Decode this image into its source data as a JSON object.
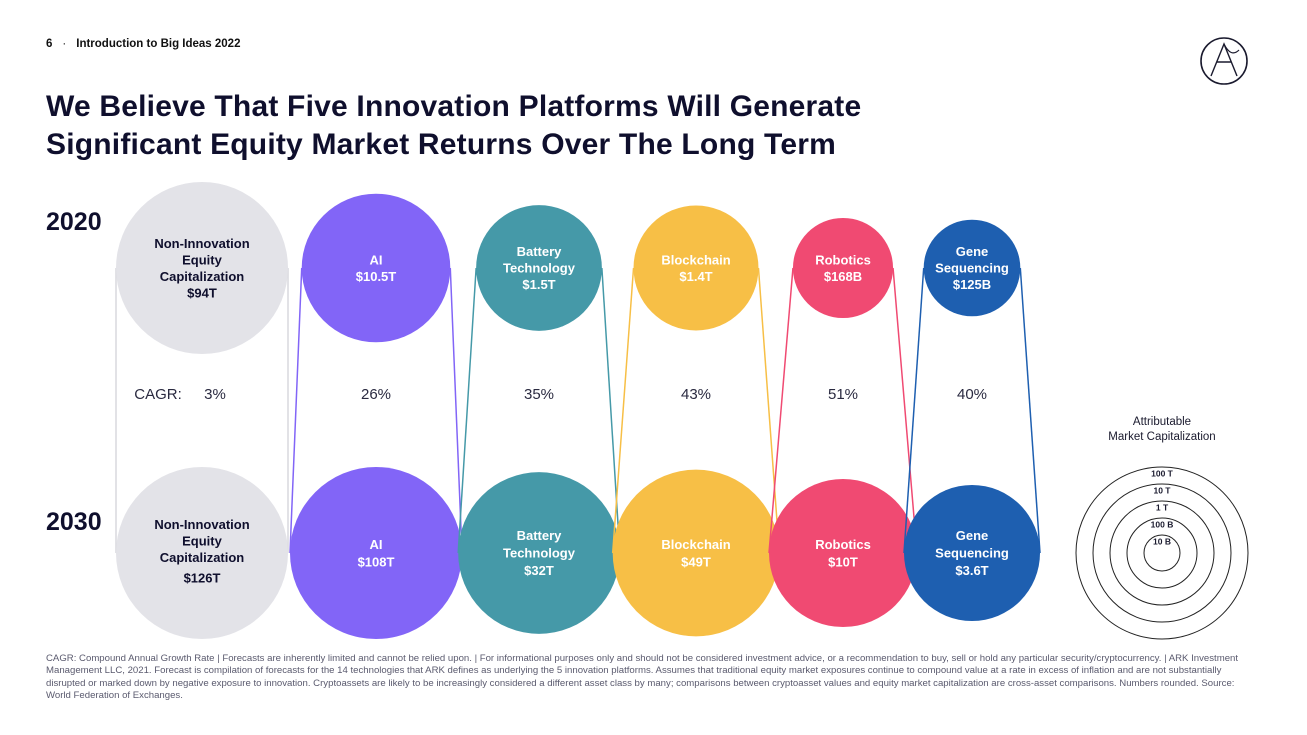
{
  "header": {
    "page_number": "6",
    "separator": "·",
    "section": "Introduction to Big Ideas 2022"
  },
  "title": {
    "line1": "We Believe That Five Innovation Platforms Will Generate",
    "line2": "Significant Equity Market Returns Over The Long Term"
  },
  "chart_data": {
    "type": "bubble-comparison",
    "title": "We Believe That Five Innovation Platforms Will Generate Significant Equity Market Returns Over The Long Term",
    "years": [
      "2020",
      "2030"
    ],
    "cagr_label": "CAGR:",
    "series": [
      {
        "name": "Non-Innovation Equity Capitalization",
        "label_lines": [
          "Non-Innovation",
          "Equity",
          "Capitalization"
        ],
        "value_2020": 94,
        "display_2020": "$94T",
        "value_2030": 126,
        "display_2030": "$126T",
        "cagr": "3%",
        "color": "#e3e3e8",
        "text_color": "#0f0f2d"
      },
      {
        "name": "AI",
        "label_lines": [
          "AI"
        ],
        "value_2020": 10.5,
        "display_2020": "$10.5T",
        "value_2030": 108,
        "display_2030": "$108T",
        "cagr": "26%",
        "color": "#8265f7",
        "text_color": "#ffffff"
      },
      {
        "name": "Battery Technology",
        "label_lines": [
          "Battery",
          "Technology"
        ],
        "value_2020": 1.5,
        "display_2020": "$1.5T",
        "value_2030": 32,
        "display_2030": "$32T",
        "cagr": "35%",
        "color": "#4599a8",
        "text_color": "#ffffff"
      },
      {
        "name": "Blockchain",
        "label_lines": [
          "Blockchain"
        ],
        "value_2020": 1.4,
        "display_2020": "$1.4T",
        "value_2030": 49,
        "display_2030": "$49T",
        "cagr": "43%",
        "color": "#f7bf46",
        "text_color": "#ffffff"
      },
      {
        "name": "Robotics",
        "label_lines": [
          "Robotics"
        ],
        "value_2020": 0.168,
        "display_2020": "$168B",
        "value_2030": 10,
        "display_2030": "$10T",
        "cagr": "51%",
        "color": "#f04a72",
        "text_color": "#ffffff"
      },
      {
        "name": "Gene Sequencing",
        "label_lines": [
          "Gene",
          "Sequencing"
        ],
        "value_2020": 0.125,
        "display_2020": "$125B",
        "value_2030": 3.6,
        "display_2030": "$3.6T",
        "cagr": "40%",
        "color": "#1e5fb0",
        "text_color": "#ffffff"
      }
    ],
    "legend": {
      "title_lines": [
        "Attributable",
        "Market Capitalization"
      ],
      "rings": [
        "100 T",
        "10 T",
        "1 T",
        "100 B",
        "10 B"
      ]
    }
  },
  "footnote": "CAGR: Compound Annual Growth Rate  |  Forecasts are inherently limited and cannot be relied upon.  |  For informational purposes only and should not be considered investment advice, or a recommendation to buy, sell or hold any particular security/cryptocurrency.  |  ARK Investment Management LLC, 2021. Forecast is compilation of forecasts for the 14 technologies that ARK defines as underlying the 5 innovation platforms. Assumes that traditional equity market exposures continue to compound value at a rate in excess of inflation and are not substantially disrupted or marked down by negative exposure to innovation. Cryptoassets are likely to be increasingly considered a different asset class by many; comparisons between cryptoasset values and equity market capitalization are cross-asset comparisons. Numbers rounded. Source: World Federation of Exchanges.",
  "colors": {
    "title": "#0f0f2d",
    "legend_stroke": "#222222"
  }
}
